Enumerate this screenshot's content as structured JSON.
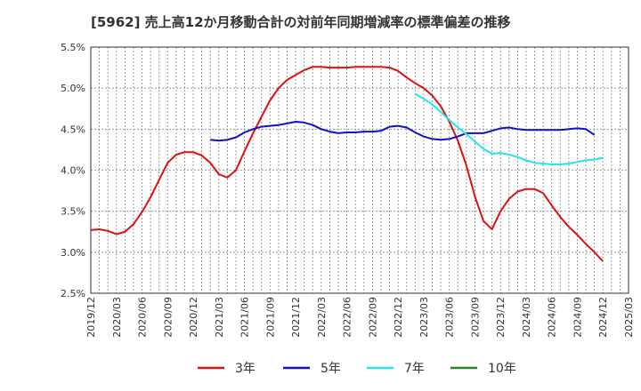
{
  "chart_data": {
    "type": "line",
    "title": "[5962]  売上高12か月移動合計の対前年同期増減率の標準偏差の推移",
    "xlabel": "",
    "ylabel": "",
    "ylim": [
      2.5,
      5.5
    ],
    "yticks": [
      "5.5%",
      "5.0%",
      "4.5%",
      "4.0%",
      "3.5%",
      "3.0%",
      "2.5%"
    ],
    "ytick_values": [
      5.5,
      5.0,
      4.5,
      4.0,
      3.5,
      3.0,
      2.5
    ],
    "xticks": [
      "2019/12",
      "2020/03",
      "2020/06",
      "2020/09",
      "2020/12",
      "2021/03",
      "2021/06",
      "2021/09",
      "2021/12",
      "2022/03",
      "2022/06",
      "2022/09",
      "2022/12",
      "2023/03",
      "2023/06",
      "2023/09",
      "2023/12",
      "2024/03",
      "2024/06",
      "2024/09",
      "2024/12",
      "2025/03"
    ],
    "grid": true,
    "legend_position": "bottom",
    "series": [
      {
        "name": "3年",
        "color": "#dd1111",
        "start_index": 0,
        "values": [
          3.27,
          3.28,
          3.26,
          3.22,
          3.25,
          3.34,
          3.49,
          3.67,
          3.88,
          4.09,
          4.19,
          4.22,
          4.22,
          4.18,
          4.09,
          3.95,
          3.91,
          4.0,
          4.23,
          4.45,
          4.65,
          4.85,
          5.0,
          5.1,
          5.16,
          5.22,
          5.26,
          5.26,
          5.25,
          5.25,
          5.25,
          5.26,
          5.26,
          5.26,
          5.26,
          5.25,
          5.21,
          5.13,
          5.06,
          5.0,
          4.91,
          4.78,
          4.59,
          4.36,
          4.06,
          3.68,
          3.38,
          3.28,
          3.5,
          3.65,
          3.74,
          3.77,
          3.77,
          3.72,
          3.57,
          3.43,
          3.31,
          3.21,
          3.1,
          3.0,
          2.89
        ]
      },
      {
        "name": "5年",
        "color": "#1111cc",
        "start_index": 14,
        "values": [
          4.37,
          4.36,
          4.37,
          4.4,
          4.46,
          4.5,
          4.53,
          4.54,
          4.55,
          4.57,
          4.59,
          4.58,
          4.55,
          4.5,
          4.47,
          4.45,
          4.46,
          4.46,
          4.47,
          4.47,
          4.48,
          4.53,
          4.54,
          4.52,
          4.46,
          4.41,
          4.38,
          4.37,
          4.38,
          4.41,
          4.45,
          4.45,
          4.45,
          4.48,
          4.51,
          4.52,
          4.5,
          4.49,
          4.49,
          4.49,
          4.49,
          4.49,
          4.5,
          4.51,
          4.5,
          4.43
        ]
      },
      {
        "name": "7年",
        "color": "#22e5ee",
        "start_index": 38,
        "values": [
          4.93,
          4.87,
          4.8,
          4.71,
          4.61,
          4.52,
          4.44,
          4.35,
          4.26,
          4.2,
          4.21,
          4.19,
          4.16,
          4.12,
          4.09,
          4.08,
          4.07,
          4.07,
          4.08,
          4.1,
          4.12,
          4.13,
          4.15
        ]
      },
      {
        "name": "10年",
        "color": "#228822",
        "start_index": 0,
        "values": []
      }
    ]
  }
}
